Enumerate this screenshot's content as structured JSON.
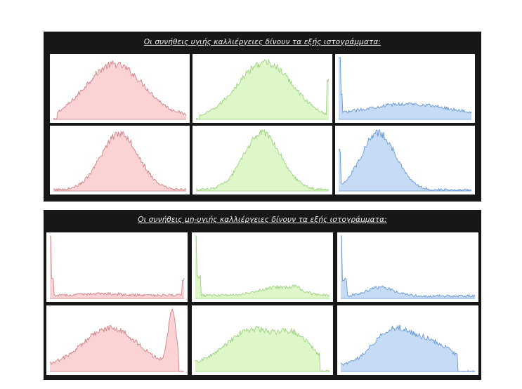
{
  "panels": [
    {
      "title": "Οι συνήθεις υγιής καλλιέργειες δίνουν τα εξής ιστογράμματα:",
      "rows": [
        [
          {
            "shape": "left_wide",
            "color": "red"
          },
          {
            "shape": "bell_wide_clip",
            "color": "green"
          },
          {
            "shape": "spike_flat",
            "color": "blue"
          }
        ],
        [
          {
            "shape": "bell_narrow",
            "color": "red"
          },
          {
            "shape": "bell_narrow",
            "color": "green"
          },
          {
            "shape": "bell_left_spike",
            "color": "blue"
          }
        ]
      ]
    },
    {
      "title": "Οι συνήθεις μη-υγιής καλλιέργειες δίνουν τα εξής ιστογράμματα:",
      "rows": [
        [
          {
            "shape": "spike_low",
            "color": "red"
          },
          {
            "shape": "spike_bump",
            "color": "green"
          },
          {
            "shape": "spike_bump_small",
            "color": "blue"
          }
        ],
        [
          {
            "shape": "bimodal_right",
            "color": "red"
          },
          {
            "shape": "plateau",
            "color": "green"
          },
          {
            "shape": "plateau_right",
            "color": "blue"
          }
        ]
      ]
    }
  ],
  "colors": {
    "red": {
      "fill": "#fbd3d5",
      "stroke": "#c9787c"
    },
    "green": {
      "fill": "#ddf7c9",
      "stroke": "#95cc77"
    },
    "blue": {
      "fill": "#c6dcf6",
      "stroke": "#5b8fcf"
    }
  },
  "chart_data": {
    "type": "area",
    "grid": false,
    "charts": [
      {
        "panel": 1,
        "row": 1,
        "col": 1,
        "color": "red",
        "shape": "left_wide"
      },
      {
        "panel": 1,
        "row": 1,
        "col": 2,
        "color": "green",
        "shape": "bell_wide_clip"
      },
      {
        "panel": 1,
        "row": 1,
        "col": 3,
        "color": "blue",
        "shape": "spike_flat"
      },
      {
        "panel": 1,
        "row": 2,
        "col": 1,
        "color": "red",
        "shape": "bell_narrow"
      },
      {
        "panel": 1,
        "row": 2,
        "col": 2,
        "color": "green",
        "shape": "bell_narrow"
      },
      {
        "panel": 1,
        "row": 2,
        "col": 3,
        "color": "blue",
        "shape": "bell_left_spike"
      },
      {
        "panel": 2,
        "row": 1,
        "col": 1,
        "color": "red",
        "shape": "spike_low"
      },
      {
        "panel": 2,
        "row": 1,
        "col": 2,
        "color": "green",
        "shape": "spike_bump"
      },
      {
        "panel": 2,
        "row": 1,
        "col": 3,
        "color": "blue",
        "shape": "spike_bump_small"
      },
      {
        "panel": 2,
        "row": 2,
        "col": 1,
        "color": "red",
        "shape": "bimodal_right"
      },
      {
        "panel": 2,
        "row": 2,
        "col": 2,
        "color": "green",
        "shape": "plateau"
      },
      {
        "panel": 2,
        "row": 2,
        "col": 3,
        "color": "blue",
        "shape": "plateau_right"
      }
    ]
  }
}
